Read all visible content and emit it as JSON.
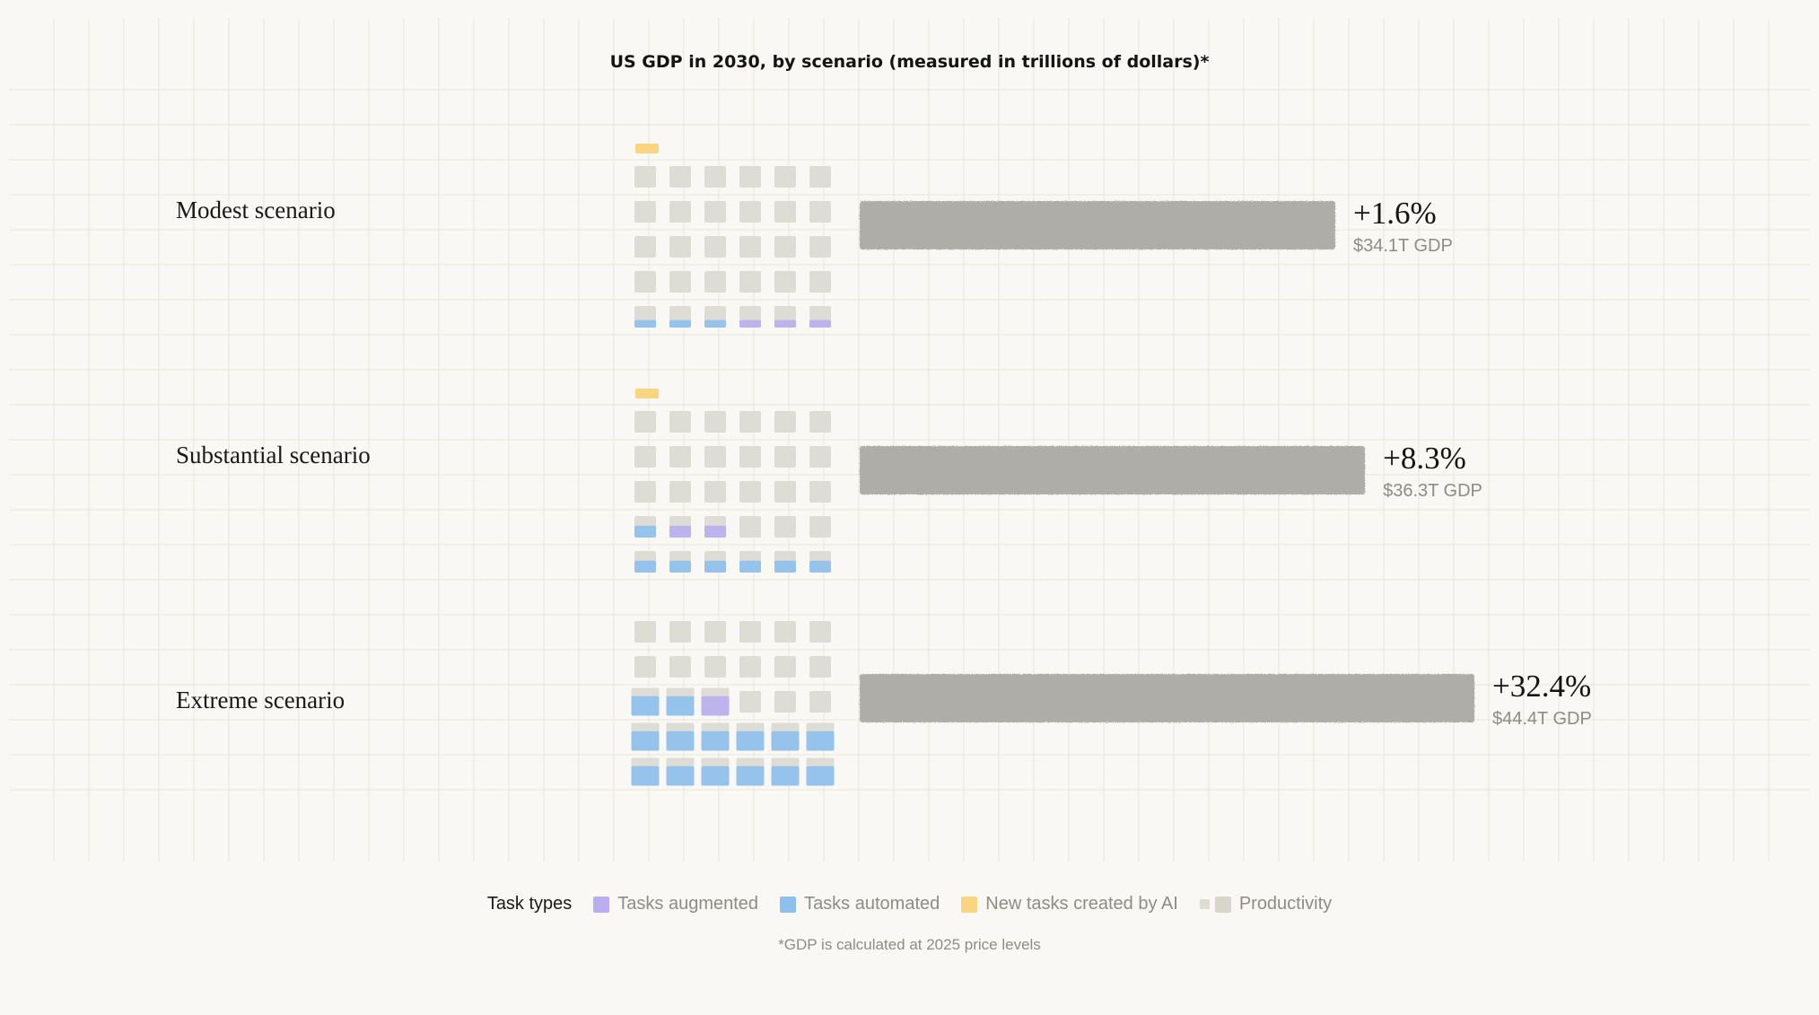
{
  "chart_data": {
    "type": "bar",
    "title": "US GDP in 2030, by scenario (measured in trillions of dollars)*",
    "categories": [
      "Modest scenario",
      "Substantial scenario",
      "Extreme scenario"
    ],
    "series": [
      {
        "values": [
          34.1,
          36.3,
          44.4
        ]
      }
    ],
    "growth_labels": [
      "+1.6%",
      "+8.3%",
      "+32.4%"
    ],
    "gdp_labels": [
      "$34.1T GDP",
      "$36.3T GDP",
      "$44.4T GDP"
    ],
    "growth_values": [
      1.6,
      8.3,
      32.4
    ],
    "task_grids": [
      {
        "scenario": "Modest scenario",
        "new_tasks": 1,
        "rows": [
          [
            "productivity",
            "productivity",
            "productivity",
            "productivity",
            "productivity",
            "productivity"
          ],
          [
            "productivity",
            "productivity",
            "productivity",
            "productivity",
            "productivity",
            "productivity"
          ],
          [
            "productivity",
            "productivity",
            "productivity",
            "productivity",
            "productivity",
            "productivity"
          ],
          [
            "productivity",
            "productivity",
            "productivity",
            "productivity",
            "productivity",
            "productivity"
          ],
          [
            "automated_partial",
            "automated_partial",
            "automated_partial",
            "augmented_partial",
            "augmented_partial",
            "augmented_partial"
          ]
        ]
      },
      {
        "scenario": "Substantial scenario",
        "new_tasks": 1,
        "rows": [
          [
            "productivity",
            "productivity",
            "productivity",
            "productivity",
            "productivity",
            "productivity"
          ],
          [
            "productivity",
            "productivity",
            "productivity",
            "productivity",
            "productivity",
            "productivity"
          ],
          [
            "productivity",
            "productivity",
            "productivity",
            "productivity",
            "productivity",
            "productivity"
          ],
          [
            "automated_half",
            "augmented_half",
            "augmented_half",
            "productivity",
            "productivity",
            "productivity"
          ],
          [
            "automated_half",
            "automated_half",
            "automated_half",
            "automated_half",
            "automated_half",
            "automated_half"
          ]
        ]
      },
      {
        "scenario": "Extreme scenario",
        "new_tasks": 0,
        "rows": [
          [
            "productivity",
            "productivity",
            "productivity",
            "productivity",
            "productivity",
            "productivity"
          ],
          [
            "productivity",
            "productivity",
            "productivity",
            "productivity",
            "productivity",
            "productivity"
          ],
          [
            "automated_full",
            "automated_full",
            "augmented_full",
            "productivity",
            "productivity",
            "productivity"
          ],
          [
            "automated_full",
            "automated_full",
            "automated_full",
            "automated_full",
            "automated_full",
            "automated_full"
          ],
          [
            "automated_full",
            "automated_full",
            "automated_full",
            "automated_full",
            "automated_full",
            "automated_full"
          ]
        ]
      }
    ],
    "legend": {
      "title": "Task types",
      "items": [
        {
          "label": "Tasks augmented",
          "color": "#b9aef0"
        },
        {
          "label": "Tasks automated",
          "color": "#8ec0ee"
        },
        {
          "label": "New tasks created by AI",
          "color": "#f8d57e"
        },
        {
          "label": "Productivity",
          "color": "#d8d6cc"
        }
      ],
      "placement": "bottom"
    },
    "footnote": "*GDP is calculated at 2025 price levels",
    "grid": true,
    "colors": {
      "bar": "#aeada7",
      "productivity_cell": "#deddd5",
      "augmented": "#b9aef0",
      "automated": "#8ec0ee",
      "new_tasks": "#f8d57e",
      "background": "#f9f8f4",
      "gridline": "#e3e2dc"
    }
  }
}
